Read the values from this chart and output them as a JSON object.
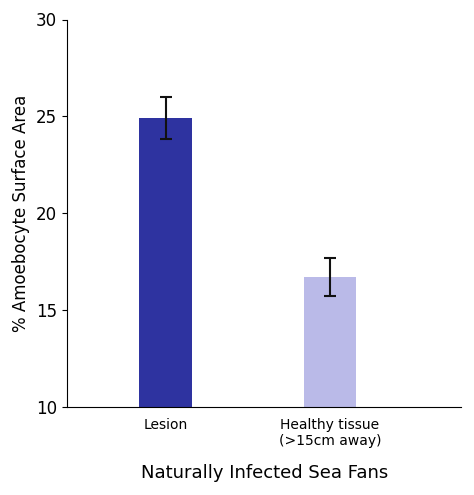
{
  "categories": [
    "Lesion",
    "Healthy tissue\n(>15cm away)"
  ],
  "values": [
    24.9,
    16.7
  ],
  "errors": [
    1.1,
    1.0
  ],
  "bar_colors": [
    "#2E33A0",
    "#BABAE8"
  ],
  "ylabel": "% Amoebocyte Surface Area",
  "xlabel": "Naturally Infected Sea Fans",
  "ylim": [
    10,
    30
  ],
  "yticks": [
    10,
    15,
    20,
    25,
    30
  ],
  "bar_width": 0.32,
  "x_positions": [
    1,
    2
  ],
  "xlim": [
    0.4,
    2.8
  ],
  "background_color": "#ffffff",
  "error_color": "#111111",
  "capsize": 4,
  "ylabel_fontsize": 12,
  "xlabel_fontsize": 13,
  "tick_fontsize": 12,
  "cat_fontsize": 13
}
